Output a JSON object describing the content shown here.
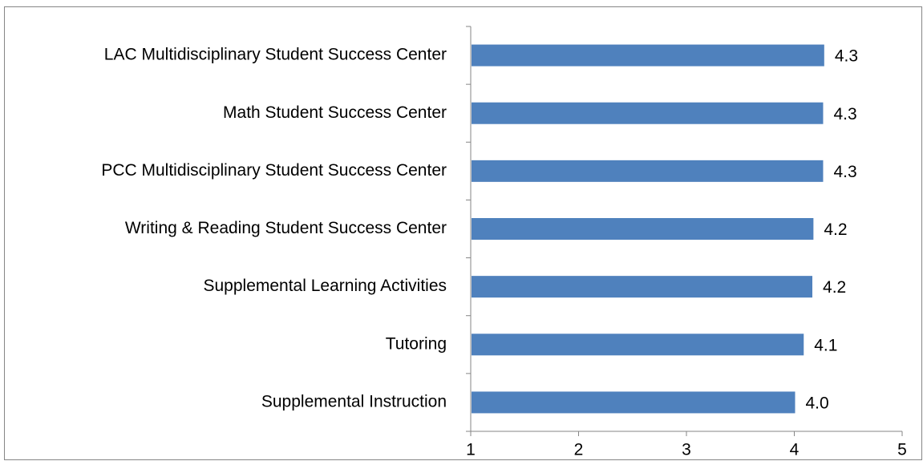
{
  "chart_data": {
    "type": "bar",
    "orientation": "horizontal",
    "categories": [
      "LAC Multidisciplinary Student Success Center",
      "Math Student Success Center",
      "PCC Multidisciplinary Student Success Center",
      "Writing & Reading Student Success Center",
      "Supplemental Learning Activities",
      "Tutoring",
      "Supplemental Instruction"
    ],
    "values": [
      4.27,
      4.26,
      4.26,
      4.17,
      4.16,
      4.08,
      4.0
    ],
    "value_labels": [
      "4.3",
      "4.3",
      "4.3",
      "4.2",
      "4.2",
      "4.1",
      "4.0"
    ],
    "color": "#4f81bd",
    "xlim": [
      1,
      5
    ],
    "xticks": [
      1,
      2,
      3,
      4,
      5
    ],
    "grid": false
  }
}
